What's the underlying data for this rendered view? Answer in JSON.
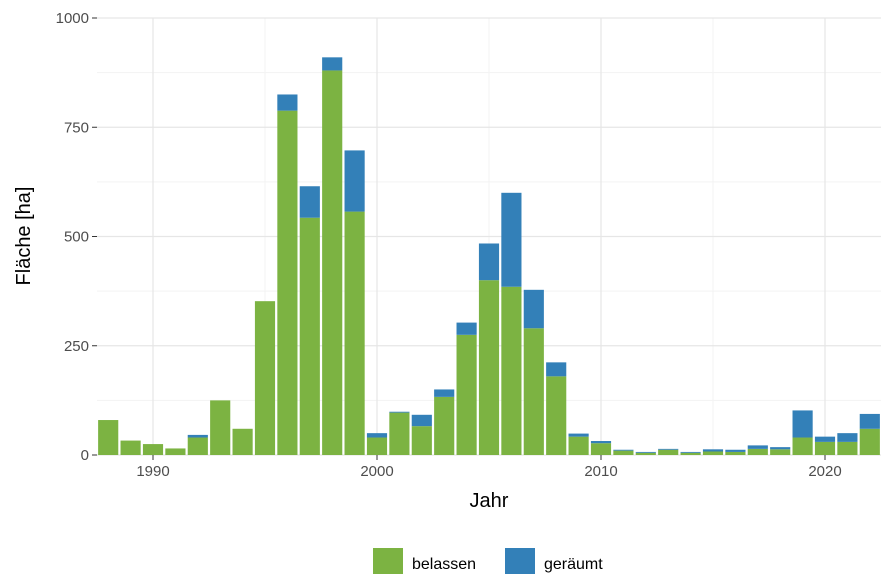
{
  "chart_data": {
    "type": "bar",
    "stacked": true,
    "xlabel": "Jahr",
    "ylabel": "Fläche [ha]",
    "xlim": [
      1987.5,
      2022.5
    ],
    "ylim": [
      0,
      1000
    ],
    "x_ticks": [
      1990,
      2000,
      2010,
      2020
    ],
    "y_ticks": [
      0,
      250,
      500,
      750,
      1000
    ],
    "grid": true,
    "legend_position": "bottom",
    "x": [
      1988,
      1989,
      1990,
      1991,
      1992,
      1993,
      1994,
      1995,
      1996,
      1997,
      1998,
      1999,
      2000,
      2001,
      2002,
      2003,
      2004,
      2005,
      2006,
      2007,
      2008,
      2009,
      2010,
      2011,
      2012,
      2013,
      2014,
      2015,
      2016,
      2017,
      2018,
      2019,
      2020,
      2021,
      2022
    ],
    "series": [
      {
        "name": "belassen",
        "color": "#7cb342",
        "values": [
          80,
          33,
          25,
          15,
          40,
          125,
          60,
          352,
          788,
          543,
          880,
          557,
          40,
          97,
          66,
          133,
          275,
          400,
          385,
          290,
          180,
          42,
          27,
          10,
          5,
          12,
          5,
          8,
          7,
          14,
          13,
          40,
          30,
          30,
          60
        ]
      },
      {
        "name": "geräumt",
        "color": "#3380b8",
        "values": [
          0,
          0,
          0,
          0,
          6,
          0,
          0,
          0,
          37,
          72,
          30,
          140,
          10,
          2,
          26,
          17,
          28,
          84,
          215,
          88,
          32,
          7,
          5,
          2,
          2,
          2,
          2,
          5,
          5,
          8,
          5,
          62,
          12,
          20,
          34
        ]
      }
    ]
  }
}
